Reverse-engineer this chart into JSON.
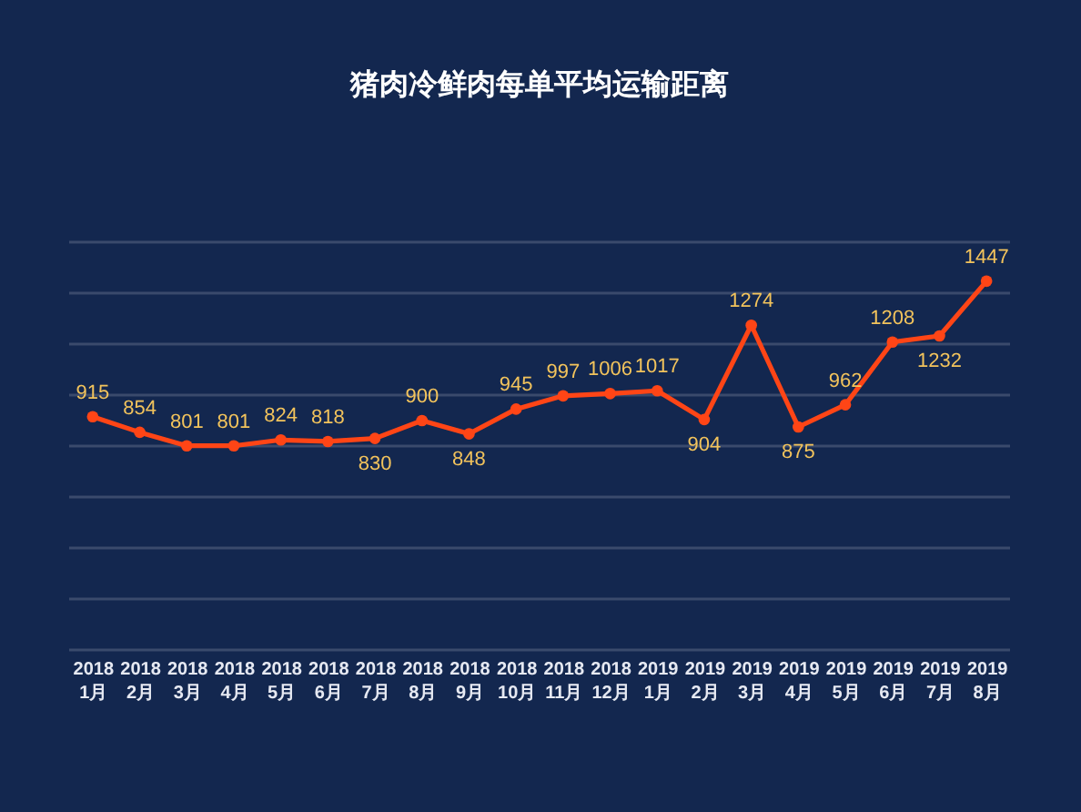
{
  "chart_data": {
    "type": "line",
    "title": "猪肉冷鲜肉每单平均运输距离",
    "categories": [
      "2018\n1月",
      "2018\n2月",
      "2018\n3月",
      "2018\n4月",
      "2018\n5月",
      "2018\n6月",
      "2018\n7月",
      "2018\n8月",
      "2018\n9月",
      "2018\n10月",
      "2018\n11月",
      "2018\n12月",
      "2019\n1月",
      "2019\n2月",
      "2019\n3月",
      "2019\n4月",
      "2019\n5月",
      "2019\n6月",
      "2019\n7月",
      "2019\n8月"
    ],
    "series": [
      {
        "color": "#ff4516",
        "values": [
          915,
          854,
          801,
          801,
          824,
          818,
          830,
          900,
          848,
          945,
          997,
          1006,
          1017,
          904,
          1274,
          875,
          962,
          1208,
          1232,
          1447
        ]
      }
    ],
    "ylim": [
      0,
      1600
    ],
    "yticks": [
      {
        "value": 0,
        "label": null
      },
      {
        "value": 200,
        "label": null
      },
      {
        "value": 400,
        "label": null
      },
      {
        "value": 600,
        "label": null
      },
      {
        "value": 800,
        "label": null
      },
      {
        "value": 1000,
        "label": null
      },
      {
        "value": 1200,
        "label": null
      },
      {
        "value": 1400,
        "label": null
      },
      {
        "value": 1600,
        "label": null
      }
    ],
    "grid": "y",
    "tick_labels": "x",
    "marker": "circle",
    "line_style": "solid",
    "data_labels": true
  }
}
